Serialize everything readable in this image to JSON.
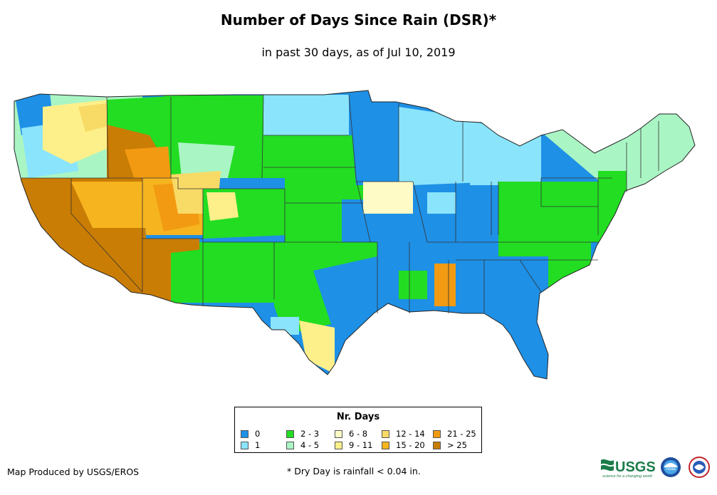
{
  "title": "Number of Days Since Rain (DSR)*",
  "subtitle": "in past 30 days, as of Jul 10, 2019",
  "map": {
    "region": "Contiguous United States",
    "classification": "days since rain"
  },
  "legend": {
    "title": "Nr. Days",
    "items": [
      {
        "label": "0",
        "color": "#1e90e6"
      },
      {
        "label": "1",
        "color": "#8ae4fb"
      },
      {
        "label": "2 - 3",
        "color": "#22dd22"
      },
      {
        "label": "4 - 5",
        "color": "#aaf5c4"
      },
      {
        "label": "6 - 8",
        "color": "#fffbc6"
      },
      {
        "label": "9 - 11",
        "color": "#fdf08a"
      },
      {
        "label": "12 - 14",
        "color": "#f8da66"
      },
      {
        "label": "15 - 20",
        "color": "#f6b41e"
      },
      {
        "label": "21 - 25",
        "color": "#f19a12"
      },
      {
        "label": "> 25",
        "color": "#c97d05"
      }
    ]
  },
  "credit": "Map Produced by USGS/EROS",
  "footnote": "* Dry Day is rainfall < 0.04 in.",
  "logos": {
    "usgs_text": "USGS",
    "usgs_tagline": "science for a changing world",
    "noaa_text": "noaa",
    "nws_icon": "national-weather-service-icon"
  }
}
